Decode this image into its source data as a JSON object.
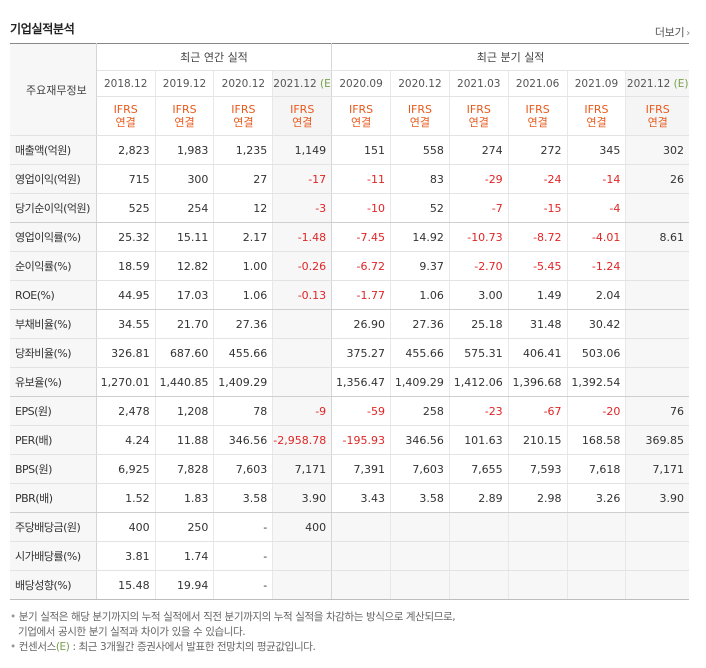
{
  "header": {
    "title": "기업실적분석",
    "more_label": "더보기"
  },
  "table": {
    "row_header": "주요재무정보",
    "annual_group": "최근 연간 실적",
    "quarter_group": "최근 분기 실적",
    "annual_periods": [
      "2018.12",
      "2019.12",
      "2020.12",
      "2021.12"
    ],
    "quarter_periods": [
      "2020.09",
      "2020.12",
      "2021.03",
      "2021.06",
      "2021.09",
      "2021.12"
    ],
    "estimate_mark": "(E)",
    "ifrs_top": "IFRS",
    "ifrs_bottom": "연결",
    "rows": [
      {
        "label": "매출액(억원)",
        "values": [
          "2,823",
          "1,983",
          "1,235",
          "1,149",
          "151",
          "558",
          "274",
          "272",
          "345",
          "302"
        ]
      },
      {
        "label": "영업이익(억원)",
        "values": [
          "715",
          "300",
          "27",
          "-17",
          "-11",
          "83",
          "-29",
          "-24",
          "-14",
          "26"
        ]
      },
      {
        "label": "당기순이익(억원)",
        "values": [
          "525",
          "254",
          "12",
          "-3",
          "-10",
          "52",
          "-7",
          "-15",
          "-4",
          ""
        ]
      },
      {
        "label": "영업이익률(%)",
        "values": [
          "25.32",
          "15.11",
          "2.17",
          "-1.48",
          "-7.45",
          "14.92",
          "-10.73",
          "-8.72",
          "-4.01",
          "8.61"
        ]
      },
      {
        "label": "순이익률(%)",
        "values": [
          "18.59",
          "12.82",
          "1.00",
          "-0.26",
          "-6.72",
          "9.37",
          "-2.70",
          "-5.45",
          "-1.24",
          ""
        ]
      },
      {
        "label": "ROE(%)",
        "values": [
          "44.95",
          "17.03",
          "1.06",
          "-0.13",
          "-1.77",
          "1.06",
          "3.00",
          "1.49",
          "2.04",
          ""
        ]
      },
      {
        "label": "부채비율(%)",
        "values": [
          "34.55",
          "21.70",
          "27.36",
          "",
          "26.90",
          "27.36",
          "25.18",
          "31.48",
          "30.42",
          ""
        ]
      },
      {
        "label": "당좌비율(%)",
        "values": [
          "326.81",
          "687.60",
          "455.66",
          "",
          "375.27",
          "455.66",
          "575.31",
          "406.41",
          "503.06",
          ""
        ]
      },
      {
        "label": "유보율(%)",
        "values": [
          "1,270.01",
          "1,440.85",
          "1,409.29",
          "",
          "1,356.47",
          "1,409.29",
          "1,412.06",
          "1,396.68",
          "1,392.54",
          ""
        ]
      },
      {
        "label": "EPS(원)",
        "values": [
          "2,478",
          "1,208",
          "78",
          "-9",
          "-59",
          "258",
          "-23",
          "-67",
          "-20",
          "76"
        ]
      },
      {
        "label": "PER(배)",
        "values": [
          "4.24",
          "11.88",
          "346.56",
          "-2,958.78",
          "-195.93",
          "346.56",
          "101.63",
          "210.15",
          "168.58",
          "369.85"
        ]
      },
      {
        "label": "BPS(원)",
        "values": [
          "6,925",
          "7,828",
          "7,603",
          "7,171",
          "7,391",
          "7,603",
          "7,655",
          "7,593",
          "7,618",
          "7,171"
        ]
      },
      {
        "label": "PBR(배)",
        "values": [
          "1.52",
          "1.83",
          "3.58",
          "3.90",
          "3.43",
          "3.58",
          "2.89",
          "2.98",
          "3.26",
          "3.90"
        ]
      },
      {
        "label": "주당배당금(원)",
        "values": [
          "400",
          "250",
          "-",
          "400",
          "",
          "",
          "",
          "",
          "",
          ""
        ]
      },
      {
        "label": "시가배당률(%)",
        "values": [
          "3.81",
          "1.74",
          "-",
          "",
          "",
          "",
          "",
          "",
          "",
          ""
        ]
      },
      {
        "label": "배당성향(%)",
        "values": [
          "15.48",
          "19.94",
          "-",
          "",
          "",
          "",
          "",
          "",
          "",
          ""
        ]
      }
    ]
  },
  "notes": {
    "line1": "분기 실적은 해당 분기까지의 누적 실적에서 직전 분기까지의 누적 실적을 차감하는 방식으로 계산되므로,",
    "line2": "기업에서 공시한 분기 실적과 차이가 있을 수 있습니다.",
    "line3_prefix": "컨센서스",
    "line3_mark": "(E)",
    "line3_suffix": ": 최근 3개월간 증권사에서 발표한 전망치의 평균값입니다."
  },
  "colors": {
    "negative": "#e02525",
    "ifrs": "#e85a1c",
    "estimate": "#77a14b"
  }
}
